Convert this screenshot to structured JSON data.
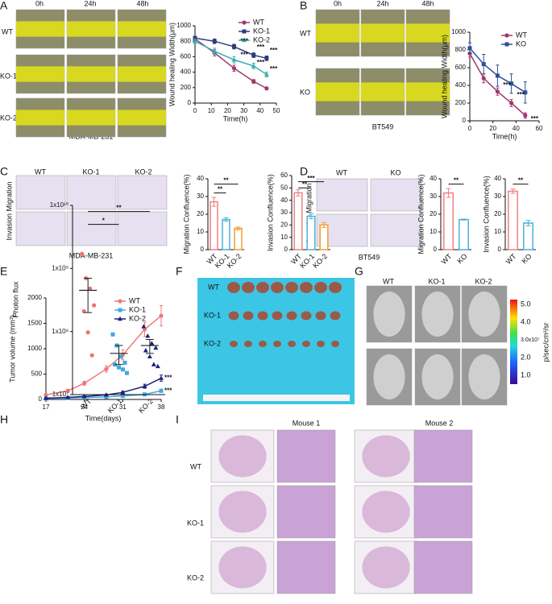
{
  "panels": {
    "A": {
      "letter": "A",
      "columns": [
        "0h",
        "24h",
        "48h"
      ],
      "rows": [
        "WT",
        "KO-1",
        "KO-2"
      ],
      "caption": "MDA-MB-231"
    },
    "B": {
      "letter": "B",
      "columns": [
        "0h",
        "24h",
        "48h"
      ],
      "rows": [
        "WT",
        "KO"
      ],
      "caption": "BT549"
    },
    "C": {
      "letter": "C",
      "columns": [
        "WT",
        "KO-1",
        "KO-2"
      ],
      "side_label": "Invasion Migration",
      "caption": "MDA-MB-231"
    },
    "D": {
      "letter": "D",
      "columns": [
        "WT",
        "KO"
      ],
      "side_label": "Invasion Migration",
      "caption": "BT549"
    },
    "E": {
      "letter": "E"
    },
    "F": {
      "letter": "F",
      "rows": [
        "WT",
        "KO-1",
        "KO-2"
      ]
    },
    "G": {
      "letter": "G",
      "columns": [
        "WT",
        "KO-1",
        "KO-2"
      ],
      "colorbar_labels": [
        "5.0",
        "4.0",
        "3.0x10⁷",
        "2.0",
        "1.0"
      ],
      "colorbar_unit": "p/sec/cm²/sr"
    },
    "H": {
      "letter": "H"
    },
    "I": {
      "letter": "I",
      "columns": [
        "Mouse 1",
        "Mouse 2"
      ],
      "rows": [
        "WT",
        "KO-1",
        "KO-2"
      ]
    }
  },
  "chart_data": [
    {
      "type": "line",
      "y_label": "Wound healing Width(μm)",
      "x_label": "Time(h)",
      "x": [
        0,
        12,
        24,
        36,
        44
      ],
      "xlim": [
        0,
        50
      ],
      "xticks": [
        0,
        10,
        20,
        30,
        40,
        50
      ],
      "ylim": [
        0,
        1000
      ],
      "yticks": [
        0,
        200,
        400,
        600,
        800,
        1000
      ],
      "legend": "upper right",
      "series": [
        {
          "name": "WT",
          "color": "#a0386e",
          "marker": "circle",
          "values": [
            830,
            650,
            450,
            280,
            190
          ],
          "errors": [
            30,
            40,
            40,
            25,
            15
          ]
        },
        {
          "name": "KO-1",
          "color": "#2b3d7e",
          "marker": "square",
          "values": [
            840,
            800,
            730,
            620,
            580
          ],
          "errors": [
            25,
            30,
            30,
            30,
            30
          ]
        },
        {
          "name": "KO-2",
          "color": "#3aaeb0",
          "marker": "triangle",
          "values": [
            800,
            670,
            560,
            480,
            370
          ],
          "errors": [
            30,
            40,
            40,
            35,
            30
          ]
        }
      ],
      "annotations": [
        {
          "text": "***",
          "x": 26,
          "y": 800
        },
        {
          "text": "***",
          "x": 26,
          "y": 620
        },
        {
          "text": "***",
          "x": 36,
          "y": 720
        },
        {
          "text": "***",
          "x": 36,
          "y": 520
        },
        {
          "text": "***",
          "x": 44,
          "y": 680
        },
        {
          "text": "***",
          "x": 44,
          "y": 440
        }
      ]
    },
    {
      "type": "line",
      "y_label": "Wound healing Width(μm)",
      "x_label": "Time(h)",
      "x": [
        0,
        12,
        24,
        36,
        48
      ],
      "xlim": [
        0,
        60
      ],
      "xticks": [
        0,
        20,
        40,
        60
      ],
      "ylim": [
        0,
        1000
      ],
      "yticks": [
        0,
        200,
        400,
        600,
        800,
        1000
      ],
      "legend": "upper right",
      "series": [
        {
          "name": "WT",
          "color": "#a0386e",
          "marker": "circle",
          "values": [
            760,
            480,
            330,
            200,
            60
          ],
          "errors": [
            40,
            50,
            40,
            40,
            30
          ]
        },
        {
          "name": "KO",
          "color": "#2b4f9a",
          "marker": "square",
          "values": [
            820,
            640,
            510,
            420,
            320
          ],
          "errors": [
            60,
            110,
            120,
            110,
            120
          ]
        }
      ],
      "annotations": [
        {
          "text": "***",
          "x": 26,
          "y": 400
        },
        {
          "text": "***",
          "x": 38,
          "y": 290
        },
        {
          "text": "***",
          "x": 50,
          "y": 20
        }
      ]
    },
    {
      "type": "bar",
      "y_label": "Migration Confluence(%)",
      "categories": [
        "WT",
        "KO-1",
        "KO-2"
      ],
      "values": [
        27,
        17,
        12
      ],
      "errors": [
        2.5,
        1,
        0.8
      ],
      "colors": [
        "#f08080",
        "#4ab0d8",
        "#f0a030"
      ],
      "ylim": [
        0,
        40
      ],
      "yticks": [
        0,
        10,
        20,
        30,
        40
      ],
      "comparisons": [
        {
          "from": 0,
          "to": 1,
          "text": "**",
          "y": 32
        },
        {
          "from": 0,
          "to": 2,
          "text": "**",
          "y": 37
        }
      ]
    },
    {
      "type": "bar",
      "y_label": "Invasion Confluence(%)",
      "categories": [
        "WT",
        "KO-1",
        "KO-2"
      ],
      "values": [
        46,
        27,
        20
      ],
      "errors": [
        2.5,
        2,
        2
      ],
      "colors": [
        "#f08080",
        "#4ab0d8",
        "#f0a030"
      ],
      "ylim": [
        0,
        60
      ],
      "yticks": [
        0,
        10,
        20,
        30,
        40,
        50,
        60
      ],
      "comparisons": [
        {
          "from": 0,
          "to": 1,
          "text": "**",
          "y": 50
        },
        {
          "from": 0,
          "to": 2,
          "text": "***",
          "y": 55
        }
      ]
    },
    {
      "type": "bar",
      "y_label": "Migration Confluence(%)",
      "categories": [
        "WT",
        "KO"
      ],
      "values": [
        32,
        17
      ],
      "errors": [
        2.5,
        0.3
      ],
      "colors": [
        "#f08080",
        "#4ab0d8"
      ],
      "ylim": [
        0,
        40
      ],
      "yticks": [
        0,
        10,
        20,
        30,
        40
      ],
      "comparisons": [
        {
          "from": 0,
          "to": 1,
          "text": "**",
          "y": 37
        }
      ]
    },
    {
      "type": "bar",
      "y_label": "Invasion Confluence(%)",
      "categories": [
        "WT",
        "KO"
      ],
      "values": [
        33,
        15
      ],
      "errors": [
        1.2,
        1.5
      ],
      "colors": [
        "#f08080",
        "#4ab0d8"
      ],
      "ylim": [
        0,
        40
      ],
      "yticks": [
        0,
        10,
        20,
        30,
        40
      ],
      "comparisons": [
        {
          "from": 0,
          "to": 1,
          "text": "**",
          "y": 37
        }
      ]
    },
    {
      "type": "line",
      "y_label": "Tumor volume (mm³)",
      "x_label": "Time(days)",
      "x": [
        17,
        21,
        24,
        28,
        31,
        35,
        38
      ],
      "xlim": [
        17,
        38
      ],
      "xticks": [
        17,
        24,
        31,
        38
      ],
      "ylim": [
        0,
        2000
      ],
      "yticks": [
        0,
        500,
        1000,
        1500,
        2000
      ],
      "legend": "upper center",
      "series": [
        {
          "name": "WT",
          "color": "#f07878",
          "marker": "circle",
          "values": [
            90,
            170,
            320,
            600,
            880,
            1380,
            1650
          ],
          "errors": [
            10,
            30,
            40,
            60,
            100,
            140,
            200
          ]
        },
        {
          "name": "KO-1",
          "color": "#45a8e0",
          "marker": "square",
          "values": [
            20,
            30,
            40,
            50,
            70,
            100,
            170
          ],
          "errors": [
            5,
            5,
            8,
            10,
            12,
            20,
            30
          ]
        },
        {
          "name": "KO-2",
          "color": "#1a237e",
          "marker": "triangle",
          "values": [
            25,
            40,
            60,
            90,
            140,
            260,
            420
          ],
          "errors": [
            5,
            6,
            10,
            12,
            20,
            40,
            60
          ]
        }
      ],
      "annotations": [
        {
          "text": "***",
          "x": 38,
          "y": 420
        },
        {
          "text": "***",
          "x": 38,
          "y": 170
        }
      ]
    },
    {
      "type": "strip",
      "y_label": "Photon flux",
      "log_y": true,
      "categories": [
        "WT",
        "KO-1",
        "KO-2"
      ],
      "colors": [
        "#f07070",
        "#3fa8e0",
        "#1a237e"
      ],
      "markers": [
        "circle",
        "square",
        "triangle"
      ],
      "values": [
        [
          1700000000,
          700000000,
          480000000,
          260000000,
          210000000,
          97000000,
          42000000
        ],
        [
          90000000,
          60000000,
          40000000,
          32000000,
          30000000,
          27000000,
          25000000,
          22000000
        ],
        [
          120000000,
          85000000,
          65000000,
          55000000,
          50000000,
          40000000,
          30000000,
          28000000
        ]
      ],
      "means": [
        450000000,
        45000000,
        60000000
      ],
      "errors": [
        250000000,
        15000000,
        15000000
      ],
      "ylim": [
        10000000,
        10000000000
      ],
      "yticks": [
        {
          "value": 10000000,
          "label": "1x10⁷"
        },
        {
          "value": 100000000,
          "label": "1x10⁸"
        },
        {
          "value": 1000000000,
          "label": "1x10⁹"
        },
        {
          "value": 10000000000,
          "label": "1x10¹⁰"
        }
      ],
      "comparisons": [
        {
          "from": 0,
          "to": 1,
          "text": "*",
          "y": 5000000000
        },
        {
          "from": 0,
          "to": 2,
          "text": "**",
          "y": 8000000000
        }
      ]
    }
  ]
}
